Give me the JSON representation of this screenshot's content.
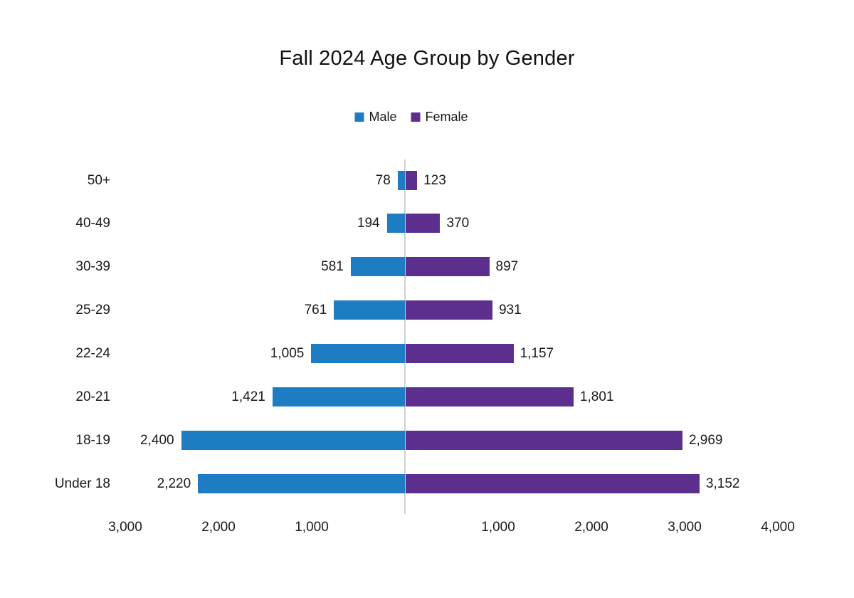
{
  "chart_data": {
    "type": "bar",
    "variant": "population-pyramid",
    "title": "Fall 2024 Age Group by Gender",
    "xlabel": "",
    "ylabel": "",
    "legend_position": "top-center",
    "grid": false,
    "categories": [
      "50+",
      "40-49",
      "30-39",
      "25-29",
      "22-24",
      "20-21",
      "18-19",
      "Under 18"
    ],
    "series": [
      {
        "name": "Male",
        "color": "#1E7DC2",
        "direction": "left",
        "values": [
          78,
          194,
          581,
          761,
          1005,
          1421,
          2400,
          2220
        ],
        "value_labels": [
          "78",
          "194",
          "581",
          "761",
          "1,005",
          "1,421",
          "2,400",
          "2,220"
        ]
      },
      {
        "name": "Female",
        "color": "#5C2F8E",
        "direction": "right",
        "values": [
          123,
          370,
          897,
          931,
          1157,
          1801,
          2969,
          3152
        ],
        "value_labels": [
          "123",
          "370",
          "897",
          "931",
          "1,157",
          "1,801",
          "2,969",
          "3,152"
        ]
      }
    ],
    "x_axis": {
      "range": [
        -3000,
        4000
      ],
      "ticks": [
        {
          "value": -3000,
          "label": "3,000"
        },
        {
          "value": -2000,
          "label": "2,000"
        },
        {
          "value": -1000,
          "label": "1,000"
        },
        {
          "value": 1000,
          "label": "1,000"
        },
        {
          "value": 2000,
          "label": "2,000"
        },
        {
          "value": 3000,
          "label": "3,000"
        },
        {
          "value": 4000,
          "label": "4,000"
        }
      ]
    },
    "colors": {
      "male": "#1E7DC2",
      "female": "#5C2F8E",
      "axis_line": "#D0D0D0",
      "text": "#1A1A1A"
    }
  }
}
